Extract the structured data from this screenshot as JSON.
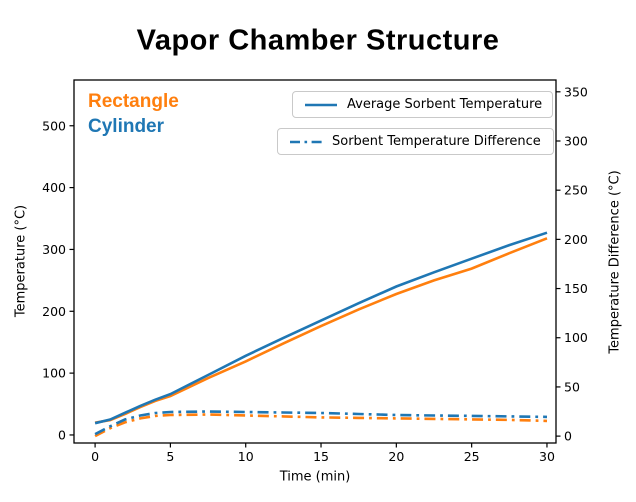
{
  "figure": {
    "title": "Vapor Chamber Structure"
  },
  "colors": {
    "rectangle": "#ff7f0e",
    "cylinder": "#1f77b4",
    "axis": "#000000",
    "legend_border": "#c9c9c9"
  },
  "series_labels": {
    "rectangle": "Rectangle",
    "cylinder": "Cylinder"
  },
  "legend": {
    "average_label": "Average Sorbent Temperature",
    "difference_label": "Sorbent Temperature Difference"
  },
  "chart_data": {
    "type": "line",
    "title": "Vapor Chamber Structure",
    "xlabel": "Time (min)",
    "ylabel_left": "Temperature (°C)",
    "ylabel_right": "Temperature Difference (°C)",
    "x_ticks": [
      0,
      5,
      10,
      15,
      20,
      25,
      30
    ],
    "y_ticks_left": [
      0,
      100,
      200,
      300,
      400,
      500
    ],
    "y_ticks_right": [
      0,
      50,
      100,
      150,
      200,
      250,
      300,
      350
    ],
    "xlim": [
      -1.4,
      30.6
    ],
    "ylim_left": [
      -13,
      574
    ],
    "ylim_right": [
      -7,
      362
    ],
    "grid": false,
    "legend_position": "upper center, two separate boxes",
    "x": [
      0,
      1,
      2,
      3,
      4,
      5,
      7.5,
      10,
      12.5,
      15,
      17.5,
      20,
      22.5,
      25,
      27.5,
      30
    ],
    "series": [
      {
        "name": "Rectangle - Average Sorbent Temperature",
        "axis": "left",
        "style": "solid",
        "color": "#ff7f0e",
        "values": [
          20,
          24,
          34,
          45,
          55,
          63,
          92,
          119,
          148,
          176,
          203,
          228,
          250,
          269,
          294,
          318
        ]
      },
      {
        "name": "Cylinder - Average Sorbent Temperature",
        "axis": "left",
        "style": "solid",
        "color": "#1f77b4",
        "values": [
          19,
          25,
          36,
          47,
          57,
          66,
          97,
          128,
          157,
          185,
          213,
          240,
          263,
          285,
          307,
          327
        ]
      },
      {
        "name": "Rectangle - Sorbent Temperature Difference",
        "axis": "right",
        "style": "dashdot",
        "color": "#ff7f0e",
        "values": [
          0,
          8,
          14,
          18,
          20.5,
          21.5,
          22,
          21,
          20,
          19,
          18.5,
          18,
          17.5,
          17,
          16.5,
          15.5
        ]
      },
      {
        "name": "Cylinder - Sorbent Temperature Difference",
        "axis": "right",
        "style": "dashdot",
        "color": "#1f77b4",
        "values": [
          2,
          10,
          17,
          21,
          23.5,
          24.5,
          25,
          24.5,
          24,
          23.5,
          22.5,
          21.5,
          21,
          20.5,
          20,
          19.5
        ]
      }
    ]
  }
}
